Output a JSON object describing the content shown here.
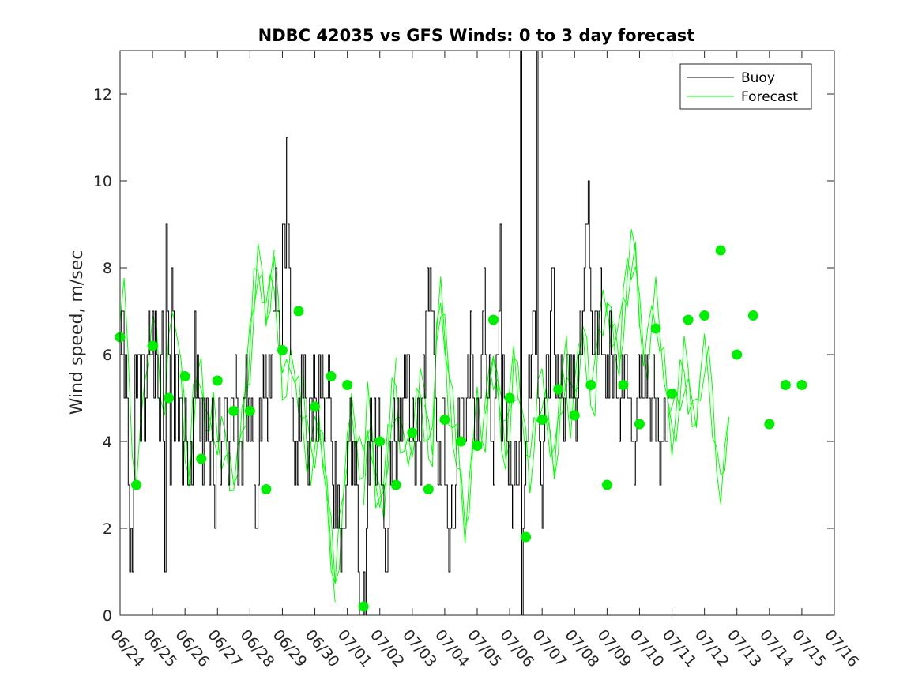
{
  "chart_data": {
    "type": "line",
    "title": "NDBC 42035 vs GFS Winds: 0 to 3 day forecast",
    "ylabel": "Wind speed, m/sec",
    "xlabel": "",
    "ylim": [
      0,
      13
    ],
    "yticks": [
      0,
      2,
      4,
      6,
      8,
      10,
      12
    ],
    "xlim_days": [
      0,
      22
    ],
    "x_tick_labels": [
      "06/24",
      "06/25",
      "06/26",
      "06/27",
      "06/28",
      "06/29",
      "06/30",
      "07/01",
      "07/02",
      "07/03",
      "07/04",
      "07/05",
      "07/06",
      "07/07",
      "07/08",
      "07/09",
      "07/10",
      "07/11",
      "07/12",
      "07/13",
      "07/14",
      "07/15",
      "07/16"
    ],
    "legend": {
      "position": "top-right",
      "entries": [
        "Buoy",
        "Forecast"
      ]
    },
    "colors": {
      "buoy": "#000000",
      "forecast": "#00ff00",
      "markers": "#00ee00"
    },
    "buoy_series": {
      "name": "Buoy",
      "step_hours": 1,
      "x_start_day": 0,
      "values": [
        6,
        7,
        7,
        5,
        6,
        5,
        3,
        1,
        2,
        1,
        3,
        6,
        5,
        6,
        6,
        4,
        6,
        6,
        4,
        5,
        6,
        7,
        6,
        6,
        7,
        5,
        7,
        6,
        5,
        4,
        6,
        7,
        4,
        1,
        9,
        7,
        6,
        3,
        8,
        7,
        4,
        6,
        6,
        4,
        5,
        5,
        3,
        4,
        5,
        4,
        3,
        3,
        4,
        3,
        5,
        7,
        5,
        6,
        5,
        4,
        5,
        3,
        5,
        4,
        5,
        4,
        3,
        4,
        5,
        3,
        2,
        4,
        4,
        5,
        3,
        4,
        4,
        5,
        5,
        4,
        3,
        4,
        5,
        5,
        4,
        6,
        5,
        3,
        4,
        4,
        3,
        5,
        5,
        6,
        4,
        5,
        4,
        5,
        4,
        3,
        2,
        2,
        3,
        5,
        4,
        6,
        5,
        6,
        5,
        4,
        6,
        5,
        6,
        7,
        7,
        8,
        7,
        7,
        6,
        6,
        9,
        9,
        8,
        11,
        9,
        8,
        6,
        5,
        4,
        3,
        4,
        3,
        5,
        4,
        6,
        5,
        6,
        5,
        4,
        3,
        5,
        5,
        4,
        6,
        5,
        4,
        4,
        6,
        5,
        6,
        5,
        4,
        5,
        5,
        6,
        5,
        4,
        3,
        2,
        4,
        2,
        3,
        2,
        1,
        2,
        2,
        2,
        3,
        4,
        4,
        5,
        3,
        4,
        3,
        4,
        3,
        1,
        0,
        0,
        0,
        1,
        0,
        2,
        4,
        3,
        5,
        4,
        4,
        5,
        3,
        4,
        5,
        4,
        3,
        3,
        2,
        1,
        1,
        2,
        4,
        3,
        4,
        5,
        4,
        3,
        5,
        4,
        5,
        4,
        5,
        6,
        5,
        6,
        6,
        4,
        4,
        5,
        4,
        3,
        4,
        5,
        4,
        3,
        5,
        6,
        5,
        7,
        8,
        7,
        8,
        7,
        7,
        6,
        5,
        4,
        3,
        4,
        3,
        5,
        5,
        3,
        3,
        2,
        1,
        2,
        3,
        2,
        2,
        3,
        4,
        5,
        4,
        5,
        5,
        4,
        4,
        5,
        6,
        5,
        7,
        6,
        5,
        4,
        4,
        5,
        4,
        5,
        6,
        7,
        8,
        6,
        5,
        5,
        6,
        4,
        4,
        3,
        5,
        6,
        6,
        7,
        9,
        4,
        6,
        5,
        5,
        4,
        3,
        4,
        3,
        2,
        3,
        4,
        3,
        3,
        4,
        13,
        0,
        2,
        3,
        4,
        4,
        6,
        5,
        6,
        7,
        7,
        6,
        13,
        5,
        4,
        3,
        2,
        4,
        5,
        6,
        6,
        5,
        7,
        8,
        8,
        6,
        5,
        6,
        5,
        5,
        6,
        5,
        4,
        5,
        6,
        6,
        5,
        6,
        5,
        6,
        5,
        4,
        5,
        6,
        7,
        6,
        7,
        8,
        9,
        9,
        10,
        8,
        7,
        6,
        6,
        7,
        7,
        6,
        7,
        8,
        6,
        6,
        6,
        5,
        6,
        5,
        7,
        6,
        5,
        6,
        6,
        5,
        5,
        4,
        5,
        6,
        5,
        6,
        6,
        5,
        5,
        5,
        4,
        4,
        3,
        4,
        5,
        6,
        5,
        6,
        5,
        5,
        6,
        5,
        6,
        5,
        4,
        5,
        6,
        5,
        4,
        5,
        4,
        3,
        4,
        4,
        5,
        4,
        4,
        5
      ]
    },
    "forecast_markers": {
      "x_days": [
        0,
        0.5,
        1,
        1.5,
        2,
        2.5,
        3,
        3.5,
        4,
        4.5,
        5,
        5.5,
        6,
        6.5,
        7,
        7.5,
        8,
        8.5,
        9,
        9.5,
        10,
        10.5,
        11,
        11.5,
        12,
        12.5,
        13,
        13.5,
        14,
        14.5,
        15,
        15.5,
        16,
        16.5,
        17,
        17.5,
        18,
        18.5,
        19,
        19.5,
        20,
        20.5,
        21
      ],
      "values": [
        6.4,
        3.0,
        6.2,
        5.0,
        5.5,
        3.6,
        5.4,
        4.7,
        4.7,
        2.9,
        6.1,
        7.0,
        4.8,
        5.5,
        5.3,
        0.2,
        4.0,
        3.0,
        4.2,
        2.9,
        4.5,
        4.0,
        3.9,
        6.8,
        5.0,
        1.8,
        4.5,
        5.2,
        4.6,
        5.3,
        3.0,
        5.3,
        4.4,
        6.6,
        5.1,
        6.8,
        6.9,
        8.4,
        6.0,
        6.9,
        4.4,
        5.3,
        5.3
      ]
    },
    "forecast_series": {
      "name": "Forecast",
      "count": 10,
      "step_hours": 3,
      "x_start_day": 0,
      "base_values": [
        6.4,
        7.0,
        6.2,
        4.5,
        3.0,
        4.0,
        5.5,
        5.8,
        6.2,
        6.5,
        5.8,
        5.0,
        6.0,
        6.8,
        6.6,
        5.5,
        4.4,
        3.6,
        4.8,
        5.2,
        5.4,
        4.4,
        4.2,
        4.7,
        4.4,
        4.2,
        3.6,
        3.0,
        2.9,
        3.5,
        4.5,
        5.2,
        6.1,
        7.2,
        7.8,
        7.5,
        7.0,
        7.8,
        8.2,
        6.5,
        4.8,
        5.4,
        6.0,
        5.5,
        5.3,
        4.8,
        3.8,
        3.4,
        3.8,
        4.5,
        4.0,
        3.0,
        1.5,
        0.2,
        1.5,
        3.0,
        4.0,
        5.0,
        4.3,
        3.6,
        3.0,
        4.5,
        4.2,
        3.2,
        2.9,
        2.6,
        3.6,
        4.6,
        5.2,
        4.5,
        4.0,
        3.8,
        3.8,
        4.4,
        5.0,
        4.8,
        4.3,
        4.0,
        6.4,
        7.0,
        6.3,
        5.2,
        4.6,
        4.0,
        3.0,
        1.8,
        2.5,
        3.7,
        4.7,
        4.5,
        4.6,
        5.4,
        5.4,
        5.2,
        4.5,
        4.0,
        4.8,
        5.8,
        5.2,
        4.6,
        3.8,
        3.2,
        4.6,
        5.3,
        5.0,
        4.5,
        3.8,
        3.5,
        4.6,
        5.5,
        5.7,
        4.6,
        4.8,
        5.6,
        6.6,
        6.2,
        5.4,
        5.1,
        6.2,
        6.8,
        7.2,
        6.9,
        6.5,
        6.0,
        6.9,
        7.5,
        8.0,
        8.4,
        7.2,
        6.2,
        6.0,
        6.4,
        6.9,
        6.5,
        6.0,
        5.0,
        4.2,
        4.4,
        5.0,
        5.6,
        5.3,
        5.0,
        4.8,
        5.3,
        5.6,
        5.4,
        4.8,
        4.0,
        3.0,
        3.6,
        4.6
      ]
    }
  }
}
